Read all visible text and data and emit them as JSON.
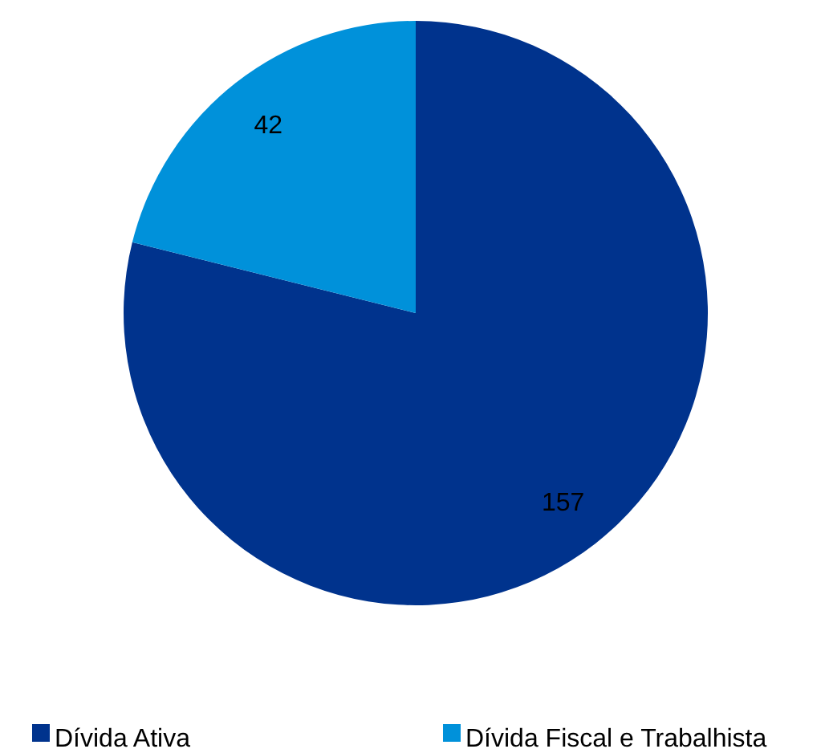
{
  "chart_data": {
    "type": "pie",
    "categories": [
      "Dívida Ativa",
      "Dívida Fiscal e Trabalhista"
    ],
    "values": [
      157,
      42
    ],
    "colors": [
      "#00338d",
      "#0091da"
    ],
    "data_labels": true,
    "legend": "bottom"
  }
}
